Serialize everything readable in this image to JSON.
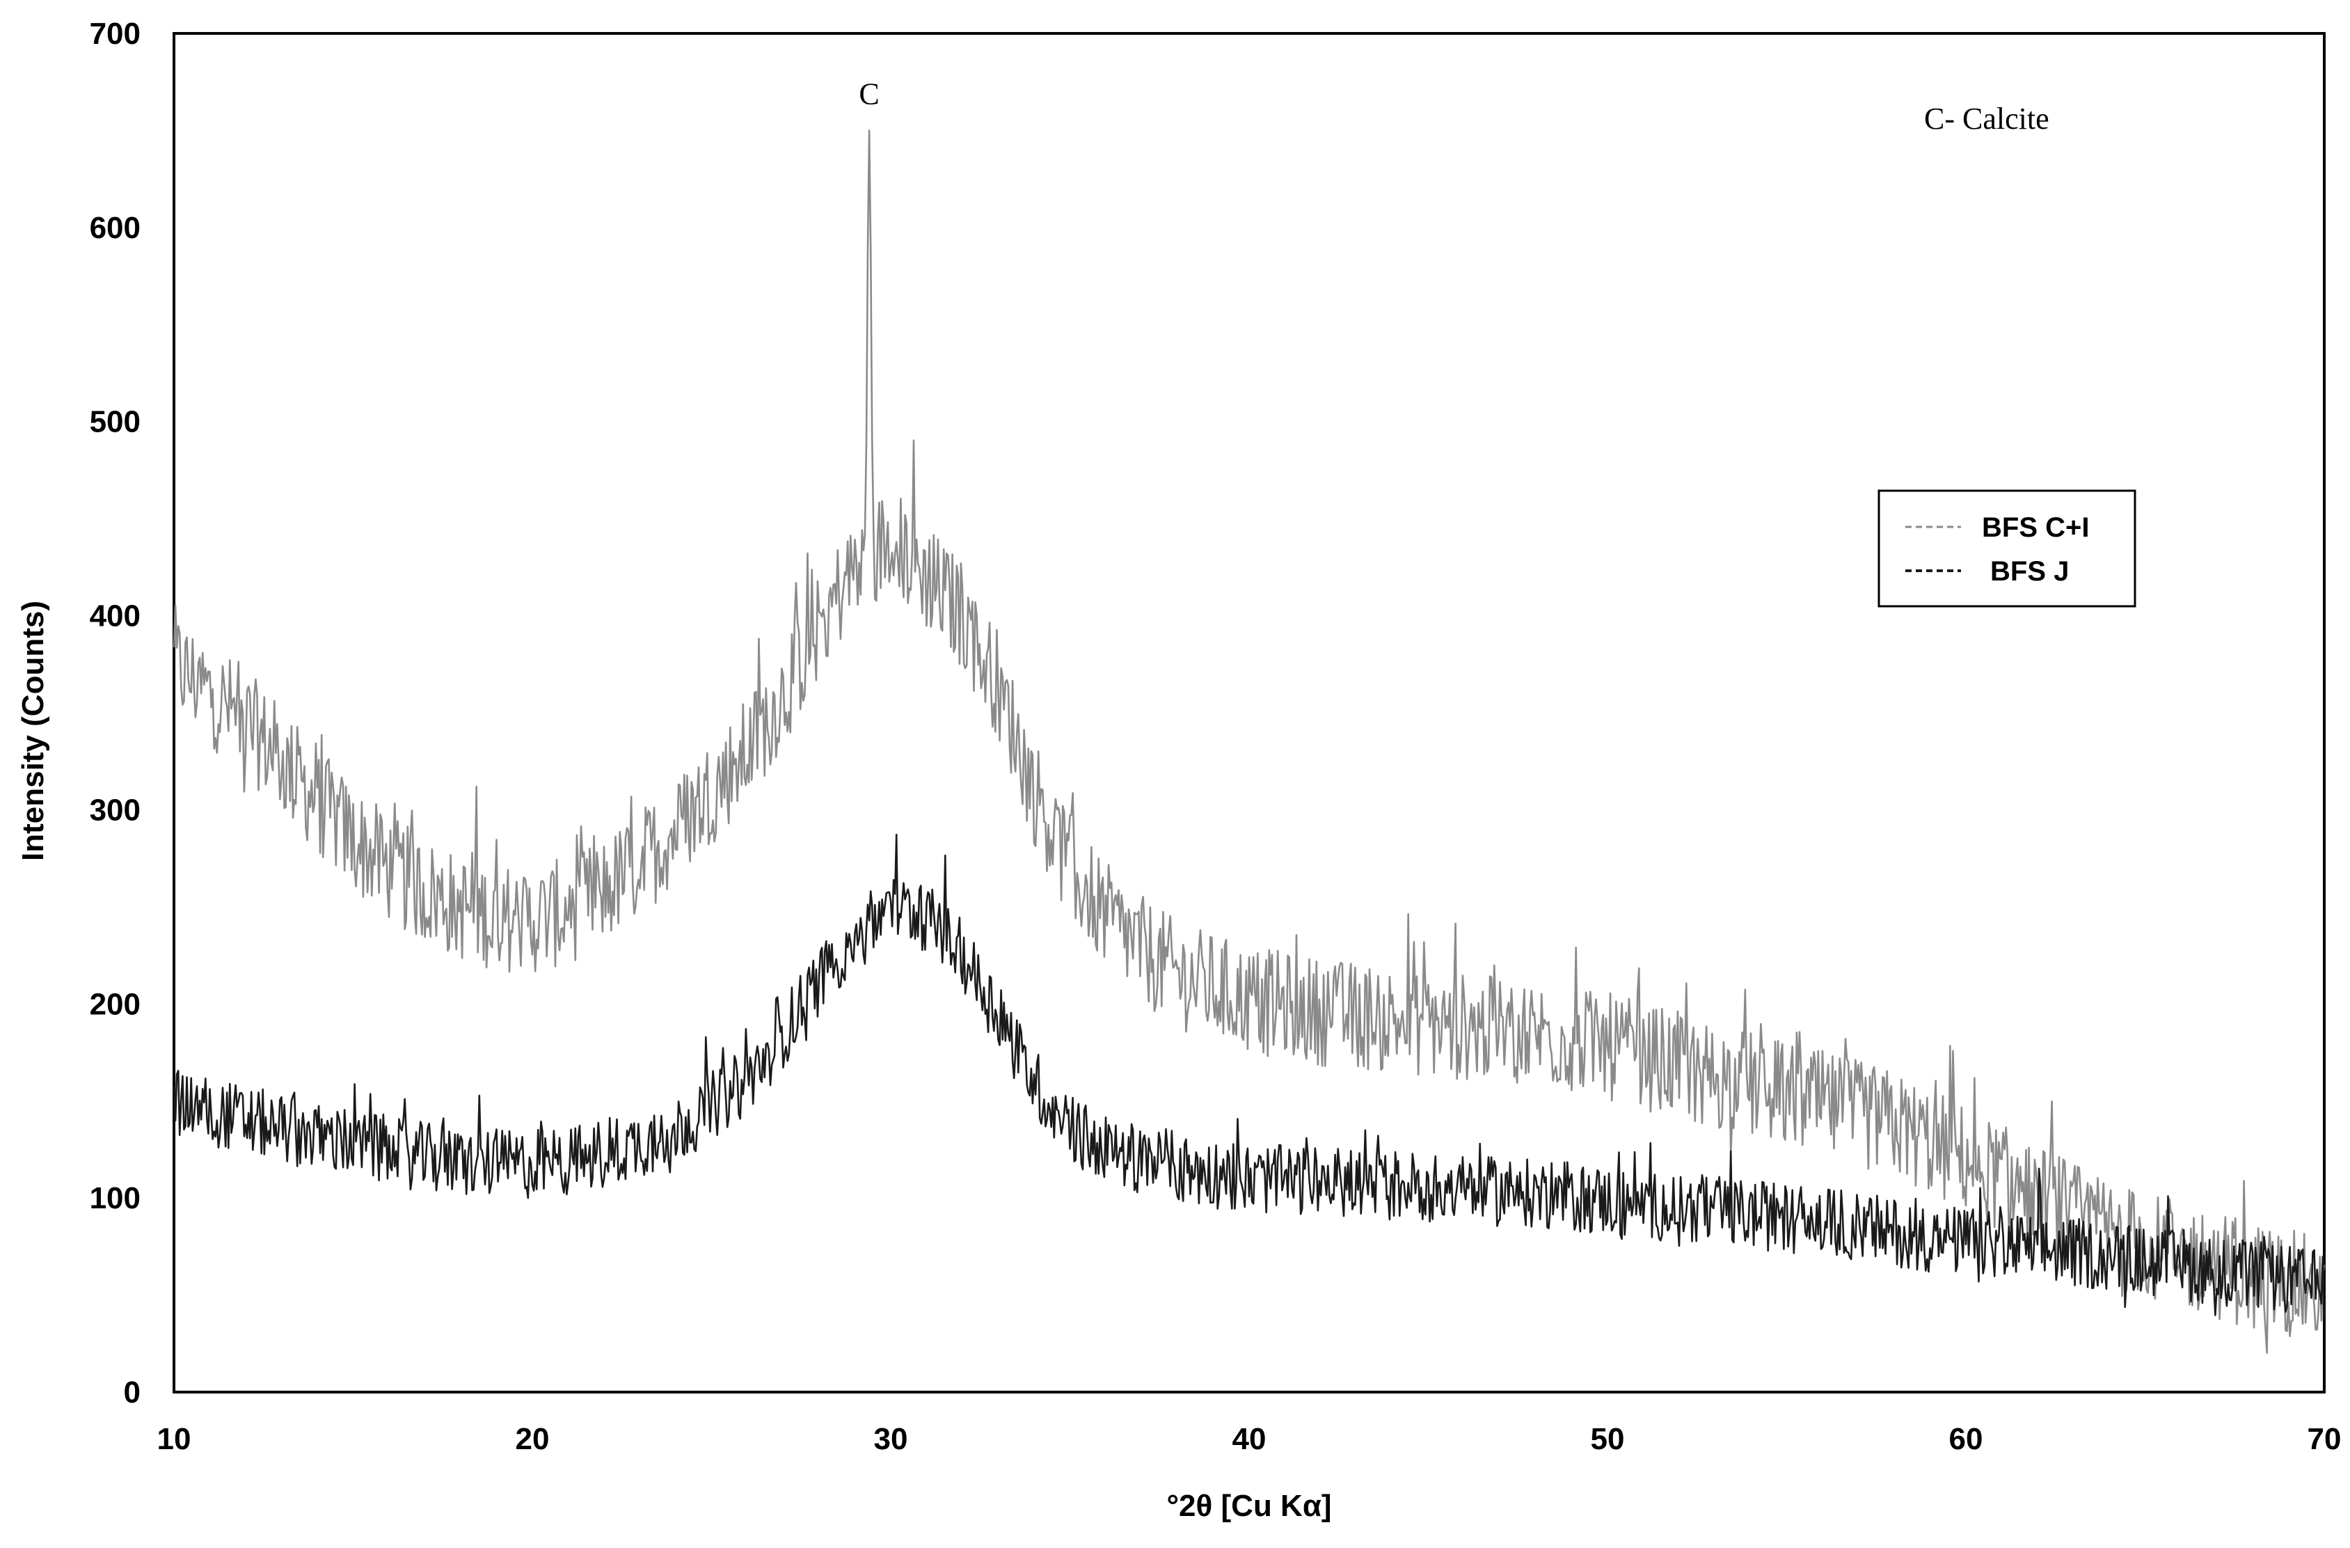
{
  "chart_data": {
    "type": "line",
    "title": "",
    "xlabel": "°2θ [Cu Kα]",
    "ylabel": "Intensity (Counts)",
    "xlim": [
      10,
      70
    ],
    "ylim": [
      0,
      700
    ],
    "x_ticks": [
      "10",
      "20",
      "30",
      "40",
      "50",
      "60",
      "70"
    ],
    "y_ticks": [
      "0",
      "100",
      "200",
      "300",
      "400",
      "500",
      "600",
      "700"
    ],
    "grid": false,
    "legend_position": "right",
    "note": "C- Calcite",
    "peak_annotation": {
      "label": "C",
      "x": 29.4,
      "y": 650
    },
    "series": [
      {
        "name": "BFS C+I",
        "color": "#8a8a8a",
        "noise": 28,
        "x": [
          10,
          11,
          12,
          13,
          14,
          15,
          16,
          17,
          18,
          19,
          20,
          21,
          22,
          23,
          24,
          25,
          26,
          27,
          28,
          29,
          29.4,
          30,
          31,
          32,
          33,
          34,
          35,
          36,
          37,
          38,
          40,
          42,
          44,
          46,
          48,
          50,
          52,
          54,
          56,
          58,
          60,
          62,
          64,
          66,
          68,
          70
        ],
        "y": [
          375,
          360,
          345,
          325,
          305,
          285,
          270,
          258,
          250,
          245,
          243,
          248,
          258,
          272,
          290,
          310,
          330,
          360,
          395,
          425,
          650,
          440,
          420,
          400,
          365,
          310,
          270,
          245,
          228,
          215,
          202,
          196,
          192,
          188,
          185,
          178,
          168,
          158,
          148,
          138,
          120,
          100,
          82,
          70,
          60,
          52
        ]
      },
      {
        "name": "BFS J",
        "color": "#1a1a1a",
        "noise": 18,
        "x": [
          10,
          12,
          14,
          16,
          18,
          20,
          22,
          24,
          26,
          27,
          28,
          29,
          30,
          31,
          32,
          33,
          34,
          35,
          36,
          38,
          40,
          44,
          48,
          52,
          56,
          60,
          64,
          68,
          70
        ],
        "y": [
          150,
          140,
          132,
          124,
          118,
          117,
          122,
          135,
          160,
          185,
          212,
          235,
          250,
          245,
          225,
          195,
          160,
          135,
          125,
          115,
          110,
          107,
          102,
          95,
          88,
          77,
          70,
          60,
          55
        ]
      }
    ]
  }
}
